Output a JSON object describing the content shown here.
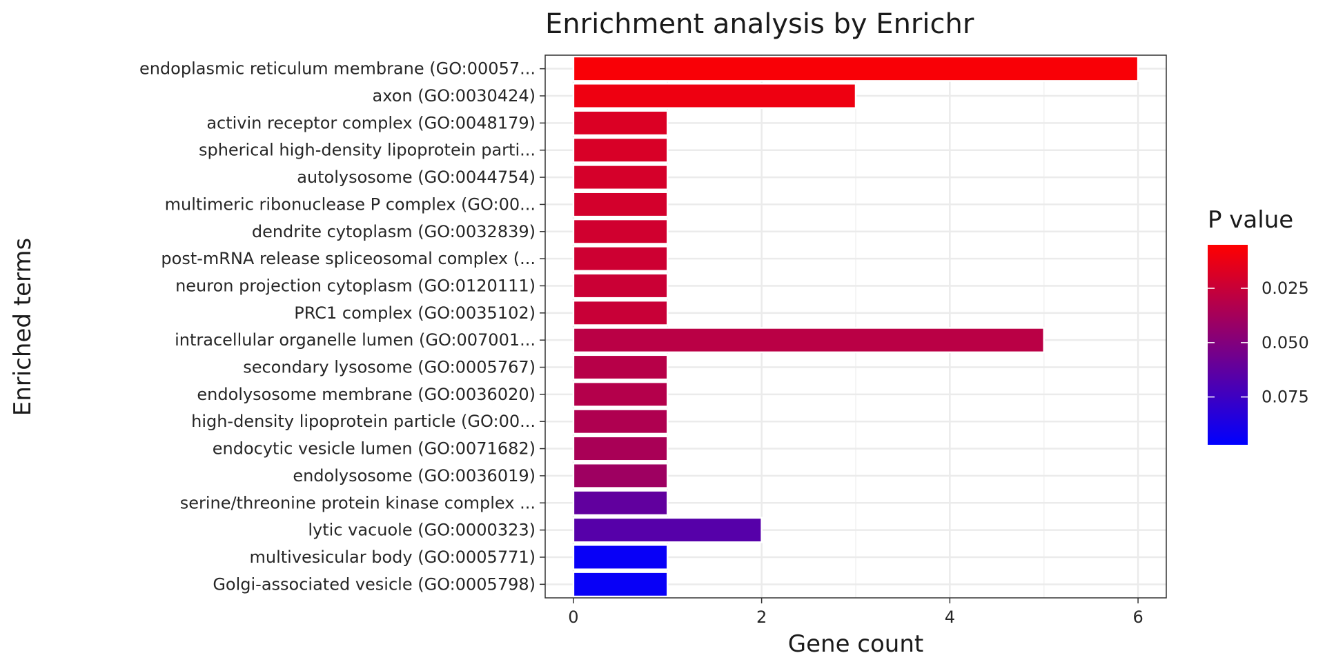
{
  "chart_data": {
    "type": "bar",
    "orientation": "horizontal",
    "title": "Enrichment analysis by Enrichr",
    "xlabel": "Gene count",
    "ylabel": "Enriched terms",
    "xlim": [
      -0.3,
      6.3
    ],
    "xticks": [
      0,
      2,
      4,
      6
    ],
    "grid": true,
    "legend_placement": "right",
    "categories": [
      "endoplasmic reticulum membrane (GO:00057...",
      "axon (GO:0030424)",
      "activin receptor complex (GO:0048179)",
      "spherical high-density lipoprotein parti...",
      "autolysosome (GO:0044754)",
      "multimeric ribonuclease P complex (GO:00...",
      "dendrite cytoplasm (GO:0032839)",
      "post-mRNA release spliceosomal complex (...",
      "neuron projection cytoplasm (GO:0120111)",
      "PRC1 complex (GO:0035102)",
      "intracellular organelle lumen (GO:007001...",
      "secondary lysosome (GO:0005767)",
      "endolysosome membrane (GO:0036020)",
      "high-density lipoprotein particle (GO:00...",
      "endocytic vesicle lumen (GO:0071682)",
      "endolysosome (GO:0036019)",
      "serine/threonine protein kinase complex ...",
      "lytic vacuole (GO:0000323)",
      "multivesicular body (GO:0005771)",
      "Golgi-associated vesicle (GO:0005798)"
    ],
    "values": [
      6,
      3,
      1,
      1,
      1,
      1,
      1,
      1,
      1,
      1,
      5,
      1,
      1,
      1,
      1,
      1,
      1,
      2,
      1,
      1
    ],
    "pvalues": [
      0.007,
      0.011,
      0.018,
      0.019,
      0.02,
      0.021,
      0.022,
      0.023,
      0.024,
      0.025,
      0.03,
      0.031,
      0.032,
      0.034,
      0.036,
      0.04,
      0.062,
      0.066,
      0.094,
      0.094
    ],
    "colorbar": {
      "title": "P value",
      "ticks": [
        "0.025",
        "0.050",
        "0.075"
      ],
      "tick_values": [
        0.025,
        0.05,
        0.075
      ],
      "range": [
        0.005,
        0.097
      ],
      "low_color": "#ff0000",
      "high_color": "#0000ff"
    }
  }
}
